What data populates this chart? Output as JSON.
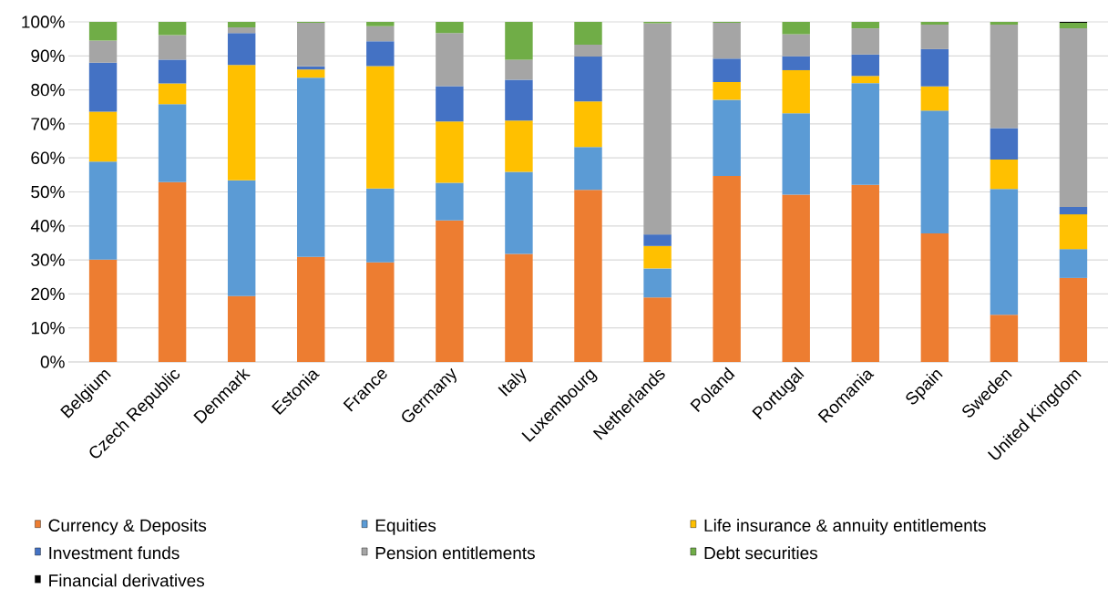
{
  "chart_data": {
    "type": "bar",
    "stacked": true,
    "categories": [
      "Belgium",
      "Czech Republic",
      "Denmark",
      "Estonia",
      "France",
      "Germany",
      "Italy",
      "Luxembourg",
      "Netherlands",
      "Poland",
      "Portugal",
      "Romania",
      "Spain",
      "Sweden",
      "United Kingdom"
    ],
    "series": [
      {
        "name": "Currency & Deposits",
        "color": "#ed7d31",
        "values": [
          30.1,
          52.9,
          19.4,
          30.9,
          29.3,
          41.6,
          31.8,
          50.6,
          19.0,
          54.7,
          49.2,
          52.1,
          37.8,
          13.9,
          24.7
        ]
      },
      {
        "name": "Equities",
        "color": "#5b9bd5",
        "values": [
          28.8,
          22.9,
          34.0,
          52.7,
          21.7,
          11.1,
          24.1,
          12.6,
          8.5,
          22.4,
          23.9,
          29.9,
          36.1,
          37.0,
          8.5
        ]
      },
      {
        "name": "Life insurance & annuity entitlements",
        "color": "#ffc000",
        "values": [
          14.7,
          6.1,
          33.9,
          2.4,
          36.0,
          18.0,
          15.1,
          13.4,
          6.6,
          5.2,
          12.7,
          2.1,
          7.1,
          8.6,
          10.2
        ]
      },
      {
        "name": "Investment funds",
        "color": "#4472c4",
        "values": [
          14.4,
          7.0,
          9.4,
          0.9,
          7.3,
          10.4,
          12.0,
          13.2,
          3.4,
          6.9,
          4.1,
          6.3,
          11.0,
          9.3,
          2.2
        ]
      },
      {
        "name": "Pension entitlements",
        "color": "#a5a5a5",
        "values": [
          6.5,
          7.2,
          1.7,
          12.8,
          4.4,
          15.6,
          5.9,
          3.5,
          62.1,
          10.5,
          6.5,
          7.7,
          7.2,
          30.4,
          52.5
        ]
      },
      {
        "name": "Debt securities",
        "color": "#70ad47",
        "values": [
          5.5,
          3.9,
          1.6,
          0.3,
          1.3,
          3.3,
          11.1,
          6.7,
          0.4,
          0.3,
          3.6,
          1.9,
          0.8,
          0.8,
          1.6
        ]
      },
      {
        "name": "Financial derivatives",
        "color": "#000000",
        "values": [
          0,
          0,
          0,
          0,
          0,
          0,
          0,
          0,
          0,
          0,
          0,
          0,
          0,
          0,
          0.3
        ]
      }
    ],
    "ylim": [
      0,
      100
    ],
    "yticks": [
      {
        "value": 0,
        "label": "0%"
      },
      {
        "value": 10,
        "label": "10%"
      },
      {
        "value": 20,
        "label": "20%"
      },
      {
        "value": 30,
        "label": "30%"
      },
      {
        "value": 40,
        "label": "40%"
      },
      {
        "value": 50,
        "label": "50%"
      },
      {
        "value": 60,
        "label": "60%"
      },
      {
        "value": 70,
        "label": "70%"
      },
      {
        "value": 80,
        "label": "80%"
      },
      {
        "value": 90,
        "label": "90%"
      },
      {
        "value": 100,
        "label": "100%"
      }
    ],
    "grid": "y",
    "legend": "bottom"
  }
}
